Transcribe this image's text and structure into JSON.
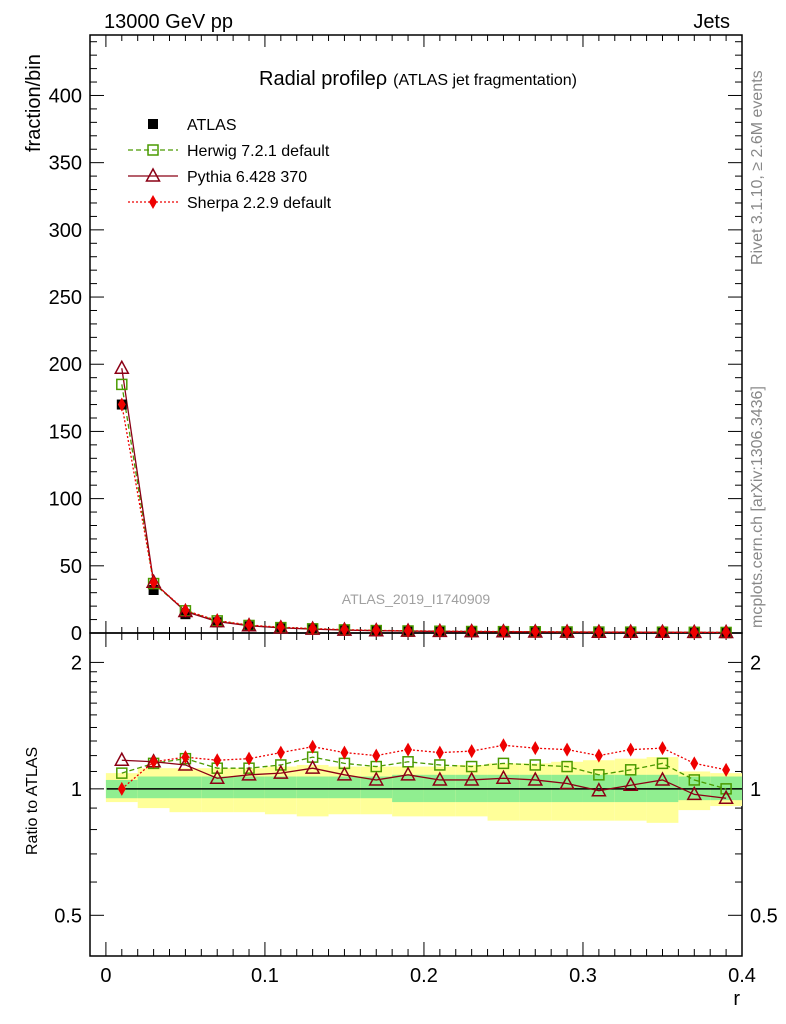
{
  "chart_data": {
    "type": "line",
    "header_left": "13000 GeV pp",
    "header_right": "Jets",
    "title": "Radial profile",
    "title_symbol": "ρ",
    "title_note": "(ATLAS jet fragmentation)",
    "ylabel": "fraction/bin",
    "xlabel": "r",
    "ratio_ylabel": "Ratio to ATLAS",
    "side_text_top": "Rivet 3.1.10, ≥ 2.6M events",
    "side_text_bottom": "mcplots.cern.ch [arXiv:1306.3436]",
    "watermark": "ATLAS_2019_I1740909",
    "xlim": [
      -0.01,
      0.4
    ],
    "ylim": [
      0,
      445
    ],
    "ratio_ylim": [
      0.4,
      2.35
    ],
    "x_ticks": [
      0,
      0.1,
      0.2,
      0.3,
      0.4
    ],
    "x_tick_labels": [
      "0",
      "0.1",
      "0.2",
      "0.3",
      "0.4"
    ],
    "y_ticks": [
      0,
      50,
      100,
      150,
      200,
      250,
      300,
      350,
      400
    ],
    "y_tick_labels": [
      "0",
      "50",
      "100",
      "150",
      "200",
      "250",
      "300",
      "350",
      "400"
    ],
    "ratio_ticks": [
      0.5,
      1,
      2
    ],
    "ratio_tick_labels": [
      "0.5",
      "1",
      "2"
    ],
    "x": [
      0.01,
      0.03,
      0.05,
      0.07,
      0.09,
      0.11,
      0.13,
      0.15,
      0.17,
      0.19,
      0.21,
      0.23,
      0.25,
      0.27,
      0.29,
      0.31,
      0.33,
      0.35,
      0.37,
      0.39
    ],
    "series": [
      {
        "name": "ATLAS",
        "color": "#000000",
        "marker": "square-filled",
        "values": [
          170,
          32,
          14,
          8,
          5,
          3.5,
          2.6,
          2.0,
          1.6,
          1.3,
          1.1,
          0.95,
          0.85,
          0.75,
          0.65,
          0.6,
          0.55,
          0.5,
          0.45,
          0.4
        ]
      },
      {
        "name": "Herwig 7.2.1 default",
        "color": "#4a9a00",
        "marker": "square-open",
        "values": [
          185,
          36.8,
          16.5,
          9.0,
          5.6,
          4.0,
          3.1,
          2.3,
          1.8,
          1.5,
          1.3,
          1.1,
          1.0,
          0.9,
          0.75,
          0.68,
          0.62,
          0.58,
          0.5,
          0.4
        ]
      },
      {
        "name": "Pythia 6.428 370",
        "color": "#8b0015",
        "marker": "triangle-open",
        "values": [
          197,
          37.8,
          16.0,
          8.5,
          5.4,
          3.8,
          2.9,
          2.15,
          1.7,
          1.4,
          1.17,
          1.0,
          0.91,
          0.79,
          0.67,
          0.6,
          0.56,
          0.53,
          0.44,
          0.38
        ]
      },
      {
        "name": "Sherpa 2.2.9 default",
        "color": "#ee0000",
        "marker": "diamond-filled",
        "values": [
          170,
          37.5,
          16.8,
          9.3,
          5.9,
          4.3,
          3.3,
          2.5,
          1.95,
          1.65,
          1.4,
          1.2,
          1.1,
          0.96,
          0.82,
          0.72,
          0.69,
          0.64,
          0.52,
          0.44
        ]
      }
    ],
    "ratio_series": [
      {
        "name": "Herwig 7.2.1 default",
        "values": [
          1.09,
          1.15,
          1.18,
          1.12,
          1.12,
          1.14,
          1.19,
          1.15,
          1.13,
          1.16,
          1.14,
          1.13,
          1.15,
          1.14,
          1.13,
          1.08,
          1.11,
          1.15,
          1.05,
          1.0
        ]
      },
      {
        "name": "Pythia 6.428 370",
        "values": [
          1.17,
          1.16,
          1.14,
          1.06,
          1.08,
          1.09,
          1.12,
          1.08,
          1.05,
          1.08,
          1.05,
          1.05,
          1.06,
          1.05,
          1.03,
          0.99,
          1.02,
          1.05,
          0.97,
          0.95
        ]
      },
      {
        "name": "Sherpa 2.2.9 default",
        "values": [
          1.0,
          1.16,
          1.19,
          1.17,
          1.18,
          1.22,
          1.26,
          1.22,
          1.2,
          1.24,
          1.22,
          1.23,
          1.27,
          1.25,
          1.24,
          1.2,
          1.24,
          1.25,
          1.15,
          1.11
        ]
      }
    ],
    "band_inner": {
      "lo": [
        0.95,
        0.95,
        0.95,
        0.95,
        0.95,
        0.95,
        0.95,
        0.95,
        0.95,
        0.93,
        0.93,
        0.93,
        0.93,
        0.93,
        0.93,
        0.93,
        0.93,
        0.93,
        0.94,
        0.94
      ],
      "hi": [
        1.05,
        1.07,
        1.07,
        1.07,
        1.07,
        1.07,
        1.07,
        1.07,
        1.07,
        1.08,
        1.08,
        1.08,
        1.08,
        1.08,
        1.08,
        1.08,
        1.08,
        1.08,
        1.07,
        1.07
      ]
    },
    "band_outer": {
      "lo": [
        0.93,
        0.9,
        0.88,
        0.88,
        0.88,
        0.87,
        0.86,
        0.87,
        0.87,
        0.86,
        0.86,
        0.86,
        0.84,
        0.84,
        0.84,
        0.84,
        0.84,
        0.83,
        0.89,
        0.91
      ],
      "hi": [
        1.09,
        1.12,
        1.12,
        1.12,
        1.12,
        1.13,
        1.14,
        1.13,
        1.13,
        1.13,
        1.13,
        1.14,
        1.15,
        1.15,
        1.16,
        1.17,
        1.18,
        1.19,
        1.1,
        1.09
      ]
    },
    "band_colors": {
      "inner": "#90ee90",
      "outer": "#ffff99"
    }
  }
}
